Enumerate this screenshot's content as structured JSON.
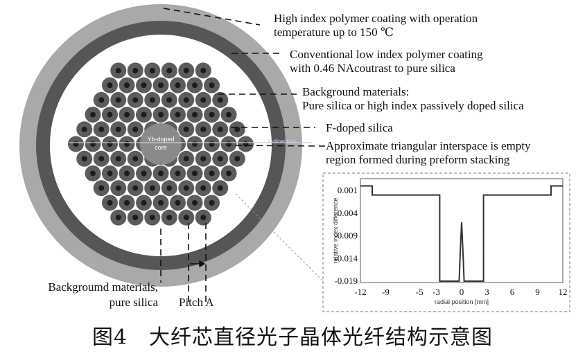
{
  "annotations": {
    "coating_high_line1": "High index polymer coating with operation",
    "coating_high_line2": "temperature up to 150 ℃",
    "coating_low_line1": "Conventional low index polymer coating",
    "coating_low_line2": "with 0.46 NAcoutrast to pure silica",
    "background_line1": "Background materials:",
    "background_line2": "Pure silica or high index passively doped silica",
    "fdoped": "F-doped silica",
    "interspace_line1": "Approximate triangular interspace is empty",
    "interspace_line2": "region formed during preform stacking",
    "core_line1": "Yb-doped",
    "core_line2": "core",
    "bottom_bg_line1": "Backgroumd materials,",
    "bottom_bg_line2": "pure silica",
    "pitch": "Pitch A",
    "xdirection": "X-direction"
  },
  "colors": {
    "outer_coating": "#a9a9a9",
    "inner_coating": "#565656",
    "cladding_bg": "#ffffff",
    "rod": "#5c5c5c",
    "rod_core": "#1c1c1c",
    "core": "#8a8a8a"
  },
  "chart_data": {
    "type": "line",
    "title": "",
    "xlabel": "radial position [mm]",
    "ylabel": "relative index difference",
    "xticks": [
      "-12",
      "-9",
      "-5",
      "-3",
      "0",
      "3",
      "6",
      "9",
      "12"
    ],
    "yticks": [
      "0.001",
      "-0.004",
      "-0.009",
      "-0.014",
      "-0.019"
    ],
    "xlim": [
      -12,
      12
    ],
    "ylim": [
      -0.019,
      0.003
    ],
    "series": [
      {
        "x": [
          -12,
          -10.6,
          -10.6,
          -2.6,
          -2.6,
          -0.3,
          -0.15,
          0,
          0.15,
          0.3,
          1,
          2.6,
          2.6,
          10.6,
          10.6,
          12
        ],
        "y": [
          0.002,
          0.002,
          0,
          0,
          -0.019,
          -0.019,
          -0.012,
          -0.006,
          -0.012,
          -0.019,
          -0.019,
          -0.019,
          0,
          0,
          0.002,
          0.002
        ]
      }
    ]
  },
  "caption": "图4　大纤芯直径光子晶体光纤结构示意图"
}
